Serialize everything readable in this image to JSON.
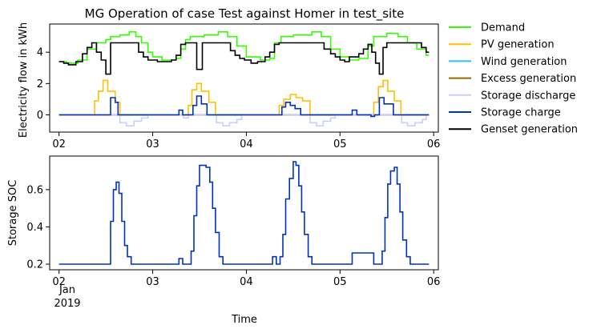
{
  "figure": {
    "x_axis_label": "Time",
    "date_sub_labels": [
      "Jan",
      "2019"
    ]
  },
  "chart_data": [
    {
      "type": "line",
      "title": "MG Operation of case Test against Homer in test_site",
      "xlabel": "",
      "ylabel": "Electricity flow in kWh",
      "x_unit": "days since 2019-01-02 00:00",
      "xlim": [
        -0.1,
        4.05
      ],
      "ylim": [
        -1.1,
        5.8
      ],
      "x_ticks": [
        0,
        1,
        2,
        3,
        4
      ],
      "x_tick_labels": [
        "02",
        "03",
        "04",
        "05",
        "06"
      ],
      "y_ticks": [
        0,
        2,
        4
      ],
      "y_tick_labels": [
        "0",
        "2",
        "4"
      ],
      "grid": false,
      "legend": "outside right",
      "step": "post",
      "series": [
        {
          "name": "Demand",
          "color": "#33ff00",
          "points": [
            [
              0,
              3.4
            ],
            [
              0.08,
              3.3
            ],
            [
              0.2,
              3.5
            ],
            [
              0.3,
              4.2
            ],
            [
              0.4,
              4.6
            ],
            [
              0.5,
              4.8
            ],
            [
              0.55,
              5.0
            ],
            [
              0.65,
              5.1
            ],
            [
              0.75,
              5.3
            ],
            [
              0.82,
              5.0
            ],
            [
              0.88,
              4.6
            ],
            [
              0.95,
              4.0
            ],
            [
              1.0,
              3.7
            ],
            [
              1.1,
              3.5
            ],
            [
              1.25,
              3.6
            ],
            [
              1.3,
              4.2
            ],
            [
              1.35,
              4.8
            ],
            [
              1.4,
              5.0
            ],
            [
              1.55,
              5.1
            ],
            [
              1.7,
              5.3
            ],
            [
              1.8,
              5.0
            ],
            [
              1.9,
              4.4
            ],
            [
              2.0,
              3.7
            ],
            [
              2.15,
              3.5
            ],
            [
              2.25,
              3.6
            ],
            [
              2.3,
              4.6
            ],
            [
              2.37,
              5.0
            ],
            [
              2.5,
              5.1
            ],
            [
              2.7,
              5.3
            ],
            [
              2.8,
              5.0
            ],
            [
              2.9,
              4.2
            ],
            [
              3.0,
              3.7
            ],
            [
              3.1,
              3.5
            ],
            [
              3.2,
              3.6
            ],
            [
              3.3,
              4.4
            ],
            [
              3.36,
              5.0
            ],
            [
              3.5,
              5.2
            ],
            [
              3.62,
              5.0
            ],
            [
              3.72,
              4.6
            ],
            [
              3.82,
              4.2
            ],
            [
              3.92,
              3.8
            ],
            [
              3.95,
              3.8
            ]
          ]
        },
        {
          "name": "PV generation",
          "color": "#ffc000",
          "points": [
            [
              0,
              0
            ],
            [
              0.35,
              0
            ],
            [
              0.38,
              0.9
            ],
            [
              0.42,
              1.5
            ],
            [
              0.47,
              2.2
            ],
            [
              0.52,
              1.5
            ],
            [
              0.6,
              0.8
            ],
            [
              0.65,
              0
            ],
            [
              1.35,
              0
            ],
            [
              1.38,
              0.6
            ],
            [
              1.42,
              1.6
            ],
            [
              1.47,
              2.0
            ],
            [
              1.52,
              1.5
            ],
            [
              1.6,
              0.8
            ],
            [
              1.67,
              0
            ],
            [
              2.32,
              0
            ],
            [
              2.35,
              0.6
            ],
            [
              2.4,
              1.0
            ],
            [
              2.47,
              1.3
            ],
            [
              2.53,
              1.1
            ],
            [
              2.6,
              0.9
            ],
            [
              2.68,
              0
            ],
            [
              3.33,
              0
            ],
            [
              3.36,
              0.8
            ],
            [
              3.41,
              1.8
            ],
            [
              3.46,
              2.2
            ],
            [
              3.51,
              1.5
            ],
            [
              3.58,
              0.9
            ],
            [
              3.65,
              0
            ],
            [
              3.95,
              0
            ]
          ]
        },
        {
          "name": "Wind generation",
          "color": "#33bbff",
          "points": [
            [
              0,
              0
            ],
            [
              3.95,
              0
            ]
          ]
        },
        {
          "name": "Excess generation",
          "color": "#996600",
          "points": [
            [
              0,
              0
            ],
            [
              3.95,
              0
            ]
          ]
        },
        {
          "name": "Storage discharge",
          "color": "#ccccff",
          "points": [
            [
              0,
              0
            ],
            [
              0.62,
              0
            ],
            [
              0.65,
              -0.5
            ],
            [
              0.72,
              -0.7
            ],
            [
              0.8,
              -0.4
            ],
            [
              0.88,
              -0.2
            ],
            [
              0.95,
              0
            ],
            [
              1.3,
              0
            ],
            [
              1.33,
              -0.2
            ],
            [
              1.38,
              0
            ],
            [
              1.65,
              0
            ],
            [
              1.68,
              -0.5
            ],
            [
              1.75,
              -0.7
            ],
            [
              1.82,
              -0.5
            ],
            [
              1.9,
              -0.3
            ],
            [
              1.95,
              0
            ],
            [
              2.65,
              0
            ],
            [
              2.68,
              -0.5
            ],
            [
              2.75,
              -0.7
            ],
            [
              2.82,
              -0.4
            ],
            [
              2.9,
              -0.2
            ],
            [
              2.95,
              0
            ],
            [
              3.63,
              0
            ],
            [
              3.66,
              -0.5
            ],
            [
              3.72,
              -0.7
            ],
            [
              3.8,
              -0.5
            ],
            [
              3.88,
              -0.3
            ],
            [
              3.92,
              0
            ],
            [
              3.95,
              0
            ]
          ]
        },
        {
          "name": "Storage charge",
          "color": "#0033bb",
          "points": [
            [
              0,
              0
            ],
            [
              0.52,
              0
            ],
            [
              0.55,
              1.1
            ],
            [
              0.6,
              0.8
            ],
            [
              0.63,
              0
            ],
            [
              1.25,
              0
            ],
            [
              1.28,
              0.3
            ],
            [
              1.32,
              0
            ],
            [
              1.4,
              0
            ],
            [
              1.43,
              0.6
            ],
            [
              1.47,
              1.2
            ],
            [
              1.52,
              0.7
            ],
            [
              1.58,
              0
            ],
            [
              2.35,
              0
            ],
            [
              2.38,
              0.5
            ],
            [
              2.42,
              0.8
            ],
            [
              2.47,
              0.6
            ],
            [
              2.52,
              0.4
            ],
            [
              2.58,
              0
            ],
            [
              3.1,
              0
            ],
            [
              3.13,
              0.3
            ],
            [
              3.18,
              0
            ],
            [
              3.3,
              0
            ],
            [
              3.33,
              -0.1
            ],
            [
              3.37,
              0
            ],
            [
              3.42,
              1.1
            ],
            [
              3.47,
              0.7
            ],
            [
              3.52,
              0.7
            ],
            [
              3.57,
              0
            ],
            [
              3.95,
              0
            ]
          ]
        },
        {
          "name": "Genset generation",
          "color": "#000000",
          "points": [
            [
              0,
              3.4
            ],
            [
              0.05,
              3.3
            ],
            [
              0.1,
              3.2
            ],
            [
              0.18,
              3.4
            ],
            [
              0.25,
              3.9
            ],
            [
              0.3,
              4.3
            ],
            [
              0.35,
              4.6
            ],
            [
              0.4,
              4.0
            ],
            [
              0.45,
              3.5
            ],
            [
              0.5,
              2.6
            ],
            [
              0.55,
              4.6
            ],
            [
              0.7,
              4.6
            ],
            [
              0.85,
              4.0
            ],
            [
              0.9,
              3.7
            ],
            [
              0.95,
              3.5
            ],
            [
              1.05,
              3.4
            ],
            [
              1.2,
              3.5
            ],
            [
              1.25,
              3.8
            ],
            [
              1.3,
              4.5
            ],
            [
              1.35,
              4.6
            ],
            [
              1.47,
              2.9
            ],
            [
              1.53,
              4.6
            ],
            [
              1.78,
              4.6
            ],
            [
              1.83,
              4.1
            ],
            [
              1.88,
              3.8
            ],
            [
              1.93,
              3.6
            ],
            [
              1.98,
              3.5
            ],
            [
              2.05,
              3.3
            ],
            [
              2.12,
              3.4
            ],
            [
              2.2,
              3.7
            ],
            [
              2.25,
              4.0
            ],
            [
              2.3,
              4.5
            ],
            [
              2.35,
              4.6
            ],
            [
              2.75,
              4.6
            ],
            [
              2.83,
              4.2
            ],
            [
              2.9,
              3.9
            ],
            [
              2.95,
              3.7
            ],
            [
              3.0,
              3.5
            ],
            [
              3.05,
              3.4
            ],
            [
              3.1,
              3.7
            ],
            [
              3.2,
              3.9
            ],
            [
              3.25,
              4.2
            ],
            [
              3.3,
              4.5
            ],
            [
              3.34,
              4.0
            ],
            [
              3.38,
              3.3
            ],
            [
              3.42,
              2.6
            ],
            [
              3.46,
              4.3
            ],
            [
              3.5,
              4.6
            ],
            [
              3.82,
              4.6
            ],
            [
              3.87,
              4.3
            ],
            [
              3.92,
              4.0
            ],
            [
              3.95,
              4.0
            ]
          ]
        }
      ]
    },
    {
      "type": "line",
      "title": "",
      "xlabel": "Time",
      "ylabel": "Storage SOC",
      "x_unit": "days since 2019-01-02 00:00",
      "xlim": [
        -0.1,
        4.05
      ],
      "ylim": [
        0.17,
        0.78
      ],
      "x_ticks": [
        0,
        1,
        2,
        3,
        4
      ],
      "x_tick_labels": [
        "02",
        "03",
        "04",
        "05",
        "06"
      ],
      "y_ticks": [
        0.2,
        0.4,
        0.6
      ],
      "y_tick_labels": [
        "0.2",
        "0.4",
        "0.6"
      ],
      "grid": false,
      "legend": "none",
      "step": "post",
      "series": [
        {
          "name": "Storage charge",
          "color": "#0033bb",
          "points": [
            [
              0,
              0.2
            ],
            [
              0.52,
              0.2
            ],
            [
              0.55,
              0.43
            ],
            [
              0.58,
              0.6
            ],
            [
              0.61,
              0.64
            ],
            [
              0.64,
              0.58
            ],
            [
              0.67,
              0.43
            ],
            [
              0.7,
              0.3
            ],
            [
              0.73,
              0.24
            ],
            [
              0.77,
              0.2
            ],
            [
              1.25,
              0.2
            ],
            [
              1.28,
              0.23
            ],
            [
              1.32,
              0.2
            ],
            [
              1.38,
              0.2
            ],
            [
              1.41,
              0.27
            ],
            [
              1.44,
              0.46
            ],
            [
              1.47,
              0.62
            ],
            [
              1.5,
              0.73
            ],
            [
              1.57,
              0.72
            ],
            [
              1.61,
              0.64
            ],
            [
              1.64,
              0.5
            ],
            [
              1.67,
              0.37
            ],
            [
              1.71,
              0.24
            ],
            [
              1.75,
              0.2
            ],
            [
              2.25,
              0.2
            ],
            [
              2.28,
              0.24
            ],
            [
              2.32,
              0.2
            ],
            [
              2.36,
              0.24
            ],
            [
              2.39,
              0.36
            ],
            [
              2.42,
              0.55
            ],
            [
              2.46,
              0.66
            ],
            [
              2.5,
              0.75
            ],
            [
              2.53,
              0.73
            ],
            [
              2.56,
              0.62
            ],
            [
              2.59,
              0.48
            ],
            [
              2.62,
              0.36
            ],
            [
              2.66,
              0.24
            ],
            [
              2.7,
              0.2
            ],
            [
              3.1,
              0.2
            ],
            [
              3.13,
              0.26
            ],
            [
              3.33,
              0.26
            ],
            [
              3.36,
              0.2
            ],
            [
              3.42,
              0.2
            ],
            [
              3.45,
              0.27
            ],
            [
              3.48,
              0.45
            ],
            [
              3.51,
              0.63
            ],
            [
              3.54,
              0.7
            ],
            [
              3.58,
              0.72
            ],
            [
              3.61,
              0.63
            ],
            [
              3.64,
              0.48
            ],
            [
              3.67,
              0.33
            ],
            [
              3.71,
              0.24
            ],
            [
              3.75,
              0.2
            ],
            [
              3.95,
              0.2
            ]
          ]
        }
      ]
    }
  ]
}
